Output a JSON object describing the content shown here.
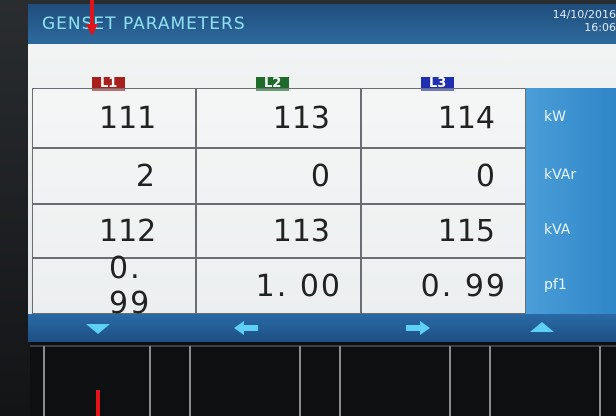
{
  "header": {
    "title": "GENSET PARAMETERS",
    "date": "14/10/2016",
    "time": "16:06"
  },
  "table": {
    "columns": [
      "L1",
      "L2",
      "L3"
    ],
    "column_colors": [
      "#a8201c",
      "#1e6b2c",
      "#1f2fb0"
    ],
    "units": [
      "kW",
      "kVAr",
      "kVA",
      "pf1"
    ],
    "rows": [
      [
        "111",
        "113",
        "114"
      ],
      [
        "2",
        "0",
        "0"
      ],
      [
        "112",
        "113",
        "115"
      ],
      [
        "0. 99",
        "1. 00",
        "0. 99"
      ]
    ]
  }
}
